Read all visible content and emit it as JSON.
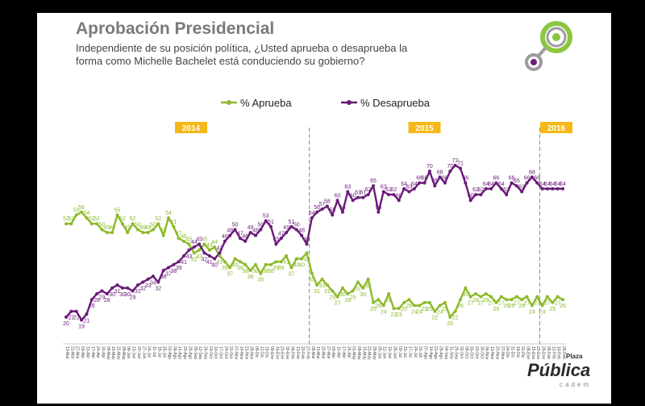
{
  "slide": {
    "title": "Aprobación Presidencial",
    "subtitle": "Independiente de su posición política, ¿Usted aprueba o desaprueba la forma como Michelle Bachelet está conduciendo su gobierno?"
  },
  "branding": {
    "name": "Pública",
    "prefix": "Plaza",
    "tagline": "cadem",
    "logo_colors": [
      "#8cc63f",
      "#6d2077"
    ]
  },
  "colors": {
    "aprueba": "#8dba2d",
    "desaprueba": "#6a1b78",
    "year_badge": "#f5b818",
    "separator": "#999999"
  },
  "chart_data": {
    "type": "line",
    "title": "Aprobación Presidencial",
    "ylim": [
      15,
      80
    ],
    "grid": false,
    "legend": "top-center",
    "years": [
      "2014",
      "2015",
      "2016"
    ],
    "series": [
      {
        "name": "% Aprueba",
        "values": [
          52,
          52,
          55,
          56,
          54,
          52,
          52,
          50,
          49,
          49,
          55,
          52,
          49,
          52,
          50,
          49,
          49,
          50,
          52,
          48,
          54,
          51,
          47,
          46,
          45,
          42,
          43,
          45,
          43,
          44,
          41,
          39,
          37,
          40,
          39,
          38,
          36,
          38,
          35,
          38,
          38,
          39,
          39,
          41,
          37,
          40,
          40,
          42,
          35,
          31,
          33,
          31,
          29,
          27,
          30,
          28,
          29,
          32,
          30,
          33,
          25,
          26,
          24,
          28,
          23,
          23,
          25,
          26,
          24,
          24,
          25,
          25,
          22,
          24,
          25,
          20,
          22,
          26,
          30,
          27,
          28,
          27,
          28,
          27,
          25,
          27,
          26,
          26,
          27,
          26,
          27,
          24,
          27,
          24,
          27,
          25,
          27,
          26
        ],
        "labels": [
          "52",
          "52",
          "55",
          "56",
          "54",
          "52",
          "52",
          "50",
          "49",
          "49",
          "55",
          "52",
          "49",
          "52",
          "50",
          "49",
          "49",
          "50",
          "52",
          "48",
          "54",
          "51",
          "47",
          "46",
          "45",
          "42",
          "43",
          "45",
          "43",
          "44",
          "41",
          "39",
          "37",
          "40",
          "39",
          "38",
          "36",
          "38",
          "35",
          "38",
          "38",
          "39",
          "39",
          "41",
          "37",
          "40",
          "40",
          "42",
          "35",
          "31",
          "33",
          "31",
          "29",
          "27",
          "30",
          "28",
          "29",
          "32",
          "30",
          "33",
          "25",
          "26",
          "24",
          "28",
          "23",
          "23",
          "25",
          "26",
          "24",
          "24",
          "25",
          "25",
          "22",
          "24",
          "25",
          "20",
          "22",
          "26",
          "30",
          "27",
          "28",
          "27",
          "28",
          "27",
          "25",
          "27",
          "26",
          "26",
          "27",
          "26",
          "27",
          "24",
          "27",
          "24",
          "27",
          "25",
          "27",
          "26"
        ]
      },
      {
        "name": "% Desaprueba",
        "values": [
          20,
          22,
          22,
          19,
          21,
          26,
          28,
          29,
          28,
          30,
          31,
          30,
          30,
          29,
          31,
          32,
          33,
          34,
          32,
          36,
          37,
          38,
          39,
          41,
          43,
          44,
          45,
          42,
          41,
          40,
          42,
          46,
          48,
          50,
          47,
          46,
          49,
          48,
          50,
          53,
          51,
          45,
          47,
          49,
          51,
          50,
          48,
          45,
          54,
          56,
          57,
          58,
          55,
          60,
          56,
          63,
          60,
          61,
          61,
          62,
          65,
          56,
          63,
          62,
          62,
          60,
          64,
          63,
          64,
          66,
          66,
          70,
          65,
          68,
          66,
          70,
          72,
          71,
          66,
          60,
          62,
          62,
          64,
          64,
          66,
          64,
          62,
          66,
          65,
          63,
          66,
          68,
          66,
          64,
          64,
          64,
          64,
          64
        ],
        "labels": [
          "20",
          "22",
          "22",
          "19",
          "21",
          "26",
          "28",
          "29",
          "28",
          "30",
          "31",
          "30",
          "30",
          "29",
          "31",
          "32",
          "33",
          "34",
          "32",
          "36",
          "37",
          "38",
          "39",
          "41",
          "43",
          "44",
          "45",
          "42",
          "41",
          "40",
          "42",
          "46",
          "48",
          "50",
          "47",
          "46",
          "49",
          "48",
          "50",
          "53",
          "51",
          "45",
          "47",
          "49",
          "51",
          "50",
          "48",
          "45",
          "54",
          "56",
          "57",
          "58",
          "55",
          "60",
          "56",
          "63",
          "60",
          "61",
          "61",
          "62",
          "65",
          "56",
          "63",
          "62",
          "62",
          "60",
          "64",
          "63",
          "64",
          "66",
          "66",
          "70",
          "65",
          "68",
          "66",
          "70",
          "72",
          "71",
          "66",
          "60",
          "62",
          "62",
          "64",
          "64",
          "66",
          "64",
          "62",
          "66",
          "65",
          "63",
          "66",
          "68",
          "66",
          "64",
          "64",
          "64",
          "64",
          "64"
        ]
      }
    ],
    "year_breaks": [
      47,
      92
    ],
    "x": [
      "13-Mar",
      "21-Mar",
      "27-Mar",
      "03-Abr",
      "10-Abr",
      "17-Abr",
      "24-Abr",
      "30-Abr",
      "09-May",
      "16-May",
      "22-May",
      "28-May",
      "06-Jun",
      "13-Jun",
      "20-Jun",
      "27-Jun",
      "04-Jul",
      "11-Jul",
      "18-Jul",
      "25-Jul",
      "01-Ago",
      "08-Ago",
      "14-Ago",
      "22-Ago",
      "29-Ago",
      "05-Sep",
      "12-Sep",
      "26-Sep",
      "03-Oct",
      "10-Oct",
      "17-Oct",
      "24-Oct",
      "31-Oct",
      "07-Nov",
      "14-Nov",
      "21-Nov",
      "28-Nov",
      "05-Dic",
      "12-Dic",
      "19-Dic",
      "09-Ene",
      "16-Ene",
      "23-Ene",
      "30-Ene",
      "06-Feb",
      "13-Feb",
      "20-Feb",
      "27-Feb",
      "06-Mar",
      "13-Mar",
      "20-Mar",
      "27-Mar",
      "03-Abr",
      "10-Abr",
      "17-Abr",
      "24-Abr",
      "01-May",
      "08-May",
      "15-May",
      "22-May",
      "29-May",
      "05-Jun",
      "12-Jun",
      "19-Jun",
      "26-Jun",
      "03-Jul",
      "10-Jul",
      "17-Jul",
      "24-Jul",
      "31-Jul",
      "07-Ago",
      "14-Ago",
      "21-Ago",
      "28-Ago",
      "04-Sep",
      "11-Sep",
      "25-Sep",
      "02-Oct",
      "09-Oct",
      "16-Oct",
      "23-Oct",
      "30-Oct",
      "06-Nov",
      "13-Nov",
      "20-Nov",
      "27-Nov",
      "04-Dic",
      "11-Dic",
      "18-Dic",
      "31-Dic",
      "08-Ene",
      "15-Ene",
      "22-Ene",
      "29-Ene",
      "05-Feb",
      "12-Feb",
      "19-Feb",
      "26-Feb"
    ]
  }
}
